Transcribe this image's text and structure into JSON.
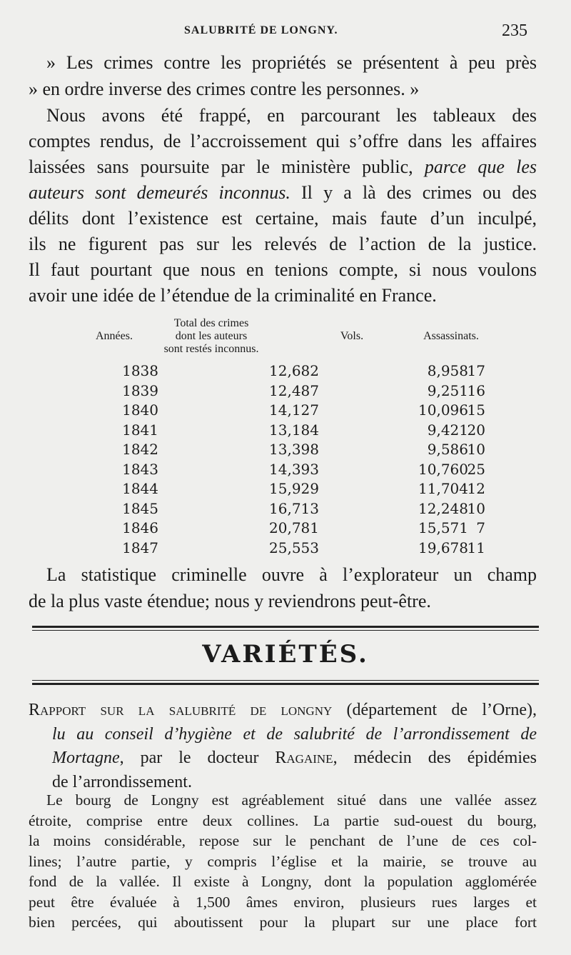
{
  "header": {
    "running_title": "SALUBRITÉ DE LONGNY.",
    "page_number": "235"
  },
  "paragraph_quote": [
    [
      {
        "t": "» Les crimes contre les propriétés se présentent à peu près"
      }
    ],
    [
      {
        "t": "» en ordre inverse des crimes contre les personnes. »"
      }
    ]
  ],
  "paragraph_main": [
    [
      {
        "t": "Nous avons été frappé, en parcourant les tableaux des"
      }
    ],
    [
      {
        "t": "comptes rendus, de l’accroissement qui s’offre dans les affaires"
      }
    ],
    [
      {
        "t": "laissées sans poursuite par le ministère public, "
      },
      {
        "t": "parce que les",
        "s": "it"
      }
    ],
    [
      {
        "t": "auteurs sont demeurés inconnus.",
        "s": "it"
      },
      {
        "t": " Il y a là des crimes ou des"
      }
    ],
    [
      {
        "t": "délits dont l’existence est certaine, mais faute d’un inculpé,"
      }
    ],
    [
      {
        "t": "ils ne figurent pas sur les relevés de l’action de la justice."
      }
    ],
    [
      {
        "t": "Il faut pourtant que nous en tenions compte, si nous voulons"
      }
    ],
    [
      {
        "t": "avoir une idée de l’étendue de la criminalité en France."
      }
    ]
  ],
  "table": {
    "headers": [
      "Années.",
      "Total des crimes\ndont les auteurs\nsont restés inconnus.",
      "Vols.",
      "Assassinats."
    ],
    "rows": [
      [
        "1838",
        "12,682",
        "8,958",
        "17"
      ],
      [
        "1839",
        "12,487",
        "9,251",
        "16"
      ],
      [
        "1840",
        "14,127",
        "10,096",
        "15"
      ],
      [
        "1841",
        "13,184",
        "9,421",
        "20"
      ],
      [
        "1842",
        "13,398",
        "9,586",
        "10"
      ],
      [
        "1843",
        "14,393",
        "10,760",
        "25"
      ],
      [
        "1844",
        "15,929",
        "11,704",
        "12"
      ],
      [
        "1845",
        "16,713",
        "12,248",
        "10"
      ],
      [
        "1846",
        "20,781",
        "15,571",
        "7"
      ],
      [
        "1847",
        "25,553",
        "19,678",
        "11"
      ]
    ]
  },
  "paragraph_stat": [
    [
      {
        "t": "La statistique criminelle ouvre à l’explorateur un champ"
      }
    ],
    [
      {
        "t": "de la plus vaste étendue; nous y reviendrons peut-être."
      }
    ]
  ],
  "section_title": "VARIÉTÉS.",
  "report_heading": [
    [
      {
        "t": "Rapport sur la salubrité de longny",
        "s": "sc"
      },
      {
        "t": " (département de l’Orne),"
      }
    ],
    [
      {
        "t": "lu au conseil d’hygiène et de salubrité de l’arrondissement de",
        "s": "it"
      }
    ],
    [
      {
        "t": "Mortagne",
        "s": "it"
      },
      {
        "t": ", par le docteur "
      },
      {
        "t": "Ragaine",
        "s": "sc"
      },
      {
        "t": ", médecin des épidémies"
      }
    ],
    [
      {
        "t": "de l’arrondissement."
      }
    ]
  ],
  "paragraph_report": [
    [
      {
        "t": "Le bourg de Longny est agréablement situé dans une vallée assez"
      }
    ],
    [
      {
        "t": "étroite, comprise entre deux collines. La partie sud-ouest du bourg,"
      }
    ],
    [
      {
        "t": "la moins considérable, repose sur le penchant de l’une de ces col-"
      }
    ],
    [
      {
        "t": "lines; l’autre partie, y compris l’église et la mairie, se trouve au"
      }
    ],
    [
      {
        "t": "fond de la vallée. Il existe à Longny, dont la population agglomérée"
      }
    ],
    [
      {
        "t": "peut être évaluée à 1,500 âmes environ, plusieurs rues larges et"
      }
    ],
    [
      {
        "t": "bien percées, qui aboutissent pour la plupart sur une place fort"
      }
    ]
  ]
}
